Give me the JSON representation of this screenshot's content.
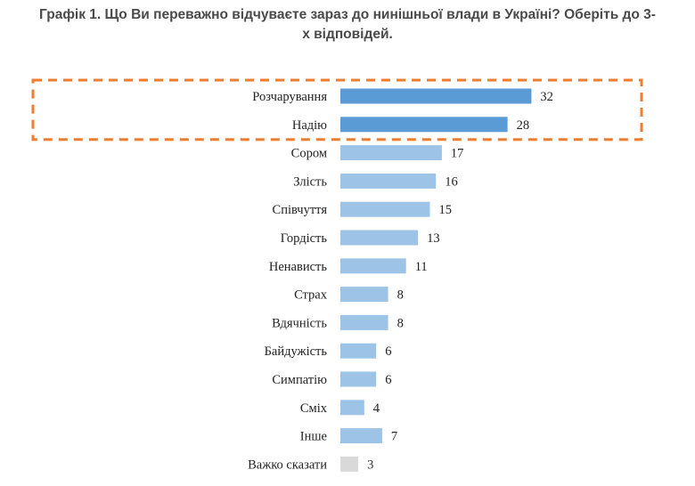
{
  "title": {
    "line1": "Графік 1. Що Ви переважно відчуваєте зараз до нинішньої влади в Україні? Оберіть до 3-",
    "line2": "х відповідей."
  },
  "colors": {
    "highlight_bar": "#5b9bd5",
    "normal_bar": "#9dc3e6",
    "other_bar": "#d9d9d9",
    "highlight_box": "#ed7d31"
  },
  "chart_data": {
    "type": "bar",
    "orientation": "horizontal",
    "categories": [
      "Розчарування",
      "Надію",
      "Сором",
      "Злість",
      "Співчуття",
      "Гордість",
      "Ненависть",
      "Страх",
      "Вдячність",
      "Байдужість",
      "Симпатію",
      "Сміх",
      "Інше",
      "Важко сказати"
    ],
    "values": [
      32,
      28,
      17,
      16,
      15,
      13,
      11,
      8,
      8,
      6,
      6,
      4,
      7,
      3
    ],
    "highlighted": [
      "Розчарування",
      "Надію"
    ],
    "title": "Графік 1. Що Ви переважно відчуваєте зараз до нинішньої влади в Україні? Оберіть до 3-х відповідей.",
    "xlabel": "",
    "ylabel": "",
    "xlim": [
      0,
      35
    ],
    "grid": false,
    "legend": "none",
    "data_labels": true
  }
}
